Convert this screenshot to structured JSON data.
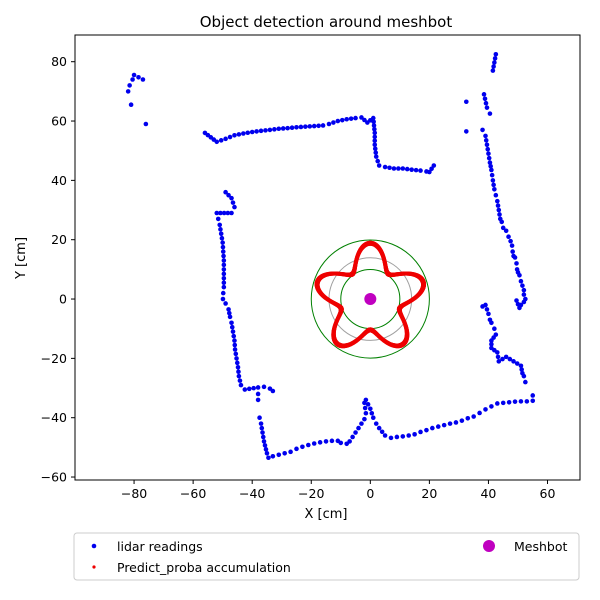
{
  "chart_data": {
    "type": "scatter",
    "title": "Object detection around meshbot",
    "xlabel": "X [cm]",
    "ylabel": "Y [cm]",
    "xlim": [
      -100,
      71
    ],
    "ylim": [
      -61,
      89
    ],
    "xticks": [
      -80,
      -60,
      -40,
      -20,
      0,
      20,
      40,
      60
    ],
    "yticks": [
      -60,
      -40,
      -20,
      0,
      20,
      40,
      60,
      80
    ],
    "grid": false,
    "legend_position": "below",
    "colors": {
      "lidar": "#0000ee",
      "predict": "#ee0000",
      "meshbot": "#c000c0",
      "circle_outer": "#008000",
      "circle_inner": "#008000",
      "circle_ref": "#a0a0a0"
    },
    "circles": [
      {
        "cx": 0,
        "cy": 0,
        "r": 20,
        "color": "circle_outer"
      },
      {
        "cx": 0,
        "cy": 0,
        "r": 10,
        "color": "circle_inner"
      },
      {
        "cx": 0,
        "cy": 0,
        "r": 14,
        "color": "circle_ref"
      }
    ],
    "predict_profile": {
      "center": [
        0,
        0
      ],
      "base_radius": 14.5,
      "amplitude": 4.2,
      "lobes": 5,
      "phase_deg": 90
    },
    "meshbot_point": {
      "x": 0,
      "y": 0
    },
    "series": [
      {
        "name": "lidar readings",
        "color_key": "lidar",
        "segments": [
          [
            [
              -82,
              70
            ],
            [
              -81.5,
              72
            ],
            [
              -80.5,
              74
            ],
            [
              -80,
              75.5
            ],
            [
              -77,
              74
            ],
            [
              -81,
              65.5
            ],
            [
              -76,
              59
            ]
          ],
          [
            [
              -56,
              56
            ],
            [
              -52,
              53
            ],
            [
              -49,
              54
            ],
            [
              -46,
              55.2
            ],
            [
              -43,
              55.8
            ],
            [
              -40,
              56.3
            ],
            [
              -37,
              56.7
            ],
            [
              -34,
              57.0
            ],
            [
              -31,
              57.4
            ],
            [
              -28,
              57.6
            ],
            [
              -25,
              57.9
            ],
            [
              -22,
              58.1
            ],
            [
              -19,
              58.3
            ],
            [
              -16,
              58.5
            ],
            [
              -14,
              59.0
            ],
            [
              -11,
              60.0
            ],
            [
              -8,
              60.6
            ],
            [
              -5,
              61.0
            ],
            [
              -3,
              61.2
            ],
            [
              -1,
              59.5
            ],
            [
              1,
              61
            ],
            [
              1.5,
              56
            ],
            [
              1.5,
              52
            ],
            [
              2,
              48
            ],
            [
              3,
              45
            ],
            [
              5,
              44.5
            ],
            [
              8,
              44
            ],
            [
              11,
              44
            ],
            [
              14,
              43.6
            ],
            [
              17,
              43.3
            ],
            [
              19,
              43.0
            ],
            [
              20,
              42.8
            ],
            [
              21.5,
              45
            ]
          ],
          [
            [
              -49,
              36
            ],
            [
              -47,
              34
            ],
            [
              -46,
              31
            ],
            [
              -47,
              29
            ],
            [
              -52,
              29
            ],
            [
              -51.5,
              27
            ],
            [
              -51,
              25
            ],
            [
              -50.5,
              22
            ],
            [
              -50,
              19
            ],
            [
              -49.8,
              16
            ],
            [
              -49.6,
              13
            ],
            [
              -49.6,
              10
            ],
            [
              -49.6,
              7
            ],
            [
              -49.6,
              4
            ],
            [
              -49.8,
              2
            ],
            [
              -49.9,
              0
            ],
            [
              -49,
              -1.5
            ],
            [
              -48,
              -3.5
            ],
            [
              -47.5,
              -6
            ],
            [
              -47,
              -8
            ],
            [
              -46.5,
              -11
            ],
            [
              -46,
              -14
            ],
            [
              -45.8,
              -17
            ],
            [
              -45.3,
              -20
            ],
            [
              -44.8,
              -23
            ],
            [
              -44.5,
              -26
            ],
            [
              -43.8,
              -29
            ],
            [
              -42.5,
              -30.5
            ],
            [
              -38,
              -29.8
            ],
            [
              -36,
              -29.6
            ],
            [
              -34,
              -30.2
            ],
            [
              -33,
              -31
            ]
          ],
          [
            [
              -38,
              -32
            ],
            [
              -38,
              -34
            ],
            [
              -37.5,
              -40
            ],
            [
              -37,
              -42
            ],
            [
              -36.5,
              -45
            ],
            [
              -36,
              -48
            ],
            [
              -35,
              -52
            ],
            [
              -34.5,
              -53.5
            ],
            [
              -33,
              -53
            ],
            [
              -31,
              -52.5
            ],
            [
              -29,
              -52
            ],
            [
              -27,
              -51.5
            ],
            [
              -25,
              -50.5
            ],
            [
              -23,
              -49.8
            ],
            [
              -21,
              -49.2
            ],
            [
              -19,
              -48.7
            ],
            [
              -17,
              -48.3
            ],
            [
              -15,
              -48.0
            ],
            [
              -13,
              -47.8
            ],
            [
              -11,
              -47.8
            ],
            [
              -10,
              -48.5
            ],
            [
              -8,
              -48.8
            ],
            [
              -7,
              -48.0
            ],
            [
              -6,
              -46.5
            ],
            [
              -5,
              -45
            ],
            [
              -4,
              -43.5
            ],
            [
              -3,
              -42
            ],
            [
              -2,
              -40.5
            ],
            [
              -1.5,
              -38.5
            ],
            [
              -2,
              -35
            ],
            [
              -1.5,
              -34
            ],
            [
              0,
              -37
            ],
            [
              1,
              -40
            ],
            [
              2,
              -42
            ],
            [
              3,
              -43.5
            ],
            [
              5,
              -46
            ],
            [
              7,
              -46.8
            ],
            [
              9,
              -46.5
            ],
            [
              11,
              -46.3
            ],
            [
              13,
              -46.0
            ],
            [
              15,
              -45.6
            ],
            [
              17,
              -44.8
            ],
            [
              19,
              -44.2
            ],
            [
              21,
              -43.5
            ],
            [
              23,
              -43.0
            ],
            [
              25,
              -42.5
            ],
            [
              27,
              -42.0
            ],
            [
              29,
              -41.6
            ],
            [
              31,
              -41.0
            ],
            [
              33,
              -40.2
            ],
            [
              35,
              -39.6
            ],
            [
              37,
              -38.4
            ],
            [
              39,
              -37.2
            ],
            [
              41,
              -36.2
            ],
            [
              43,
              -35.2
            ],
            [
              45,
              -35.0
            ],
            [
              47,
              -34.8
            ],
            [
              49,
              -34.6
            ],
            [
              51,
              -34.5
            ],
            [
              53,
              -34.5
            ],
            [
              55,
              -34.3
            ],
            [
              55,
              -32.5
            ]
          ],
          [
            [
              32.5,
              56.5
            ],
            [
              32.5,
              66.5
            ],
            [
              38.5,
              69
            ],
            [
              39.5,
              64.5
            ],
            [
              40.5,
              62.5
            ],
            [
              41.5,
              77
            ],
            [
              42.5,
              82.5
            ]
          ],
          [
            [
              38,
              57
            ],
            [
              39,
              55
            ],
            [
              39.5,
              52
            ],
            [
              40,
              49
            ],
            [
              40.5,
              46
            ],
            [
              41,
              43.5
            ],
            [
              41.5,
              40
            ],
            [
              42,
              37
            ],
            [
              42.5,
              35
            ],
            [
              43,
              33
            ],
            [
              43.5,
              30
            ],
            [
              44,
              27
            ],
            [
              44.5,
              26
            ],
            [
              45,
              24
            ],
            [
              46,
              23
            ],
            [
              46.8,
              21
            ],
            [
              47.5,
              19.5
            ],
            [
              48,
              18
            ],
            [
              48.2,
              16
            ],
            [
              48.5,
              14.5
            ],
            [
              49,
              14
            ],
            [
              49.5,
              12
            ],
            [
              49.7,
              10
            ],
            [
              50,
              9
            ],
            [
              50.5,
              8
            ],
            [
              51,
              6
            ],
            [
              51.5,
              4.5
            ],
            [
              52,
              3
            ],
            [
              52,
              1.5
            ],
            [
              52.5,
              0
            ],
            [
              52,
              -1
            ],
            [
              51,
              -2
            ],
            [
              50.5,
              -3
            ],
            [
              49.5,
              -0.5
            ]
          ],
          [
            [
              38,
              -2.5
            ],
            [
              39,
              -2
            ],
            [
              40,
              -5
            ],
            [
              40.5,
              -7
            ],
            [
              41,
              -8
            ],
            [
              42,
              -10
            ],
            [
              42.5,
              -12
            ],
            [
              41,
              -14
            ],
            [
              41,
              -16.5
            ],
            [
              43,
              -18
            ],
            [
              43.5,
              -21
            ],
            [
              46,
              -19.5
            ],
            [
              51,
              -22.5
            ],
            [
              51.5,
              -25
            ],
            [
              52,
              -26
            ],
            [
              52.5,
              -28
            ]
          ]
        ]
      },
      {
        "name": "Predict_proba accumulation",
        "color_key": "predict"
      },
      {
        "name": "Meshbot",
        "color_key": "meshbot"
      }
    ]
  }
}
